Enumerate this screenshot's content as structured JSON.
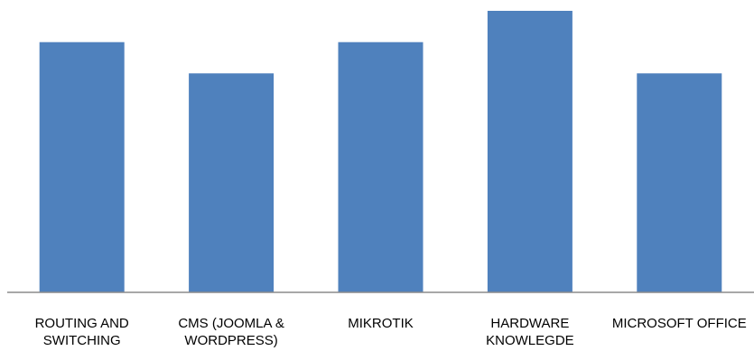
{
  "chart_data": {
    "type": "bar",
    "categories": [
      [
        "ROUTING AND",
        "SWITCHING"
      ],
      [
        "CMS (JOOMLA &",
        "WORDPRESS)"
      ],
      [
        "MIKROTIK"
      ],
      [
        "HARDWARE",
        "KNOWLEGDE"
      ],
      [
        "MICROSOFT OFFICE"
      ]
    ],
    "values": [
      80,
      70,
      80,
      90,
      70
    ],
    "ylim": [
      0,
      90
    ],
    "title": "",
    "xlabel": "",
    "ylabel": "",
    "grid": false,
    "legend": "none",
    "colors": {
      "bar": "#4f81bd",
      "axis": "#8c8c8c"
    }
  }
}
